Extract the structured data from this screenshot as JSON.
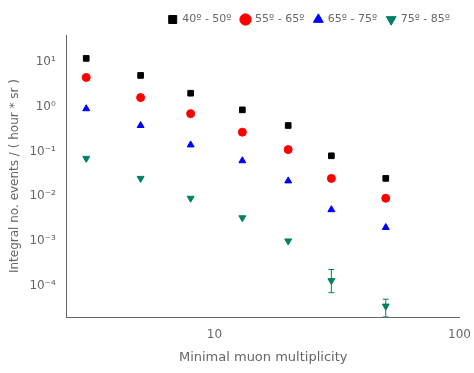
{
  "chart_data": {
    "type": "scatter",
    "x_label": "Minimal muon multiplicity",
    "y_label": "Integral no. events / ( hour * sr )",
    "log": true,
    "grid": false,
    "legend": "upper right",
    "xlim": [
      2.5,
      100
    ],
    "ylim": [
      2e-05,
      40
    ],
    "xticks": [
      10,
      100
    ],
    "yticks": [
      {
        "value": 0.0001,
        "label": "10⁻⁴"
      },
      {
        "value": 0.001,
        "label": "10⁻³"
      },
      {
        "value": 0.01,
        "label": "10⁻²"
      },
      {
        "value": 0.1,
        "label": "10⁻¹"
      },
      {
        "value": 1,
        "label": "10⁰"
      },
      {
        "value": 10,
        "label": "10¹"
      }
    ],
    "x": [
      3,
      5,
      8,
      13,
      20,
      30,
      50
    ],
    "series": [
      {
        "name": "40º - 50º",
        "color": "black",
        "marker": "square",
        "values": [
          12,
          5,
          2.0,
          0.85,
          0.38,
          0.08,
          0.025
        ]
      },
      {
        "name": "55º - 65º",
        "color": "red",
        "marker": "circle",
        "values": [
          4.5,
          1.6,
          0.7,
          0.27,
          0.11,
          0.025,
          0.009
        ]
      },
      {
        "name": "65º - 75º",
        "color": "blue",
        "marker": "triangle_up",
        "values": [
          0.9,
          0.38,
          0.14,
          0.062,
          0.022,
          0.005,
          0.002
        ]
      },
      {
        "name": "75º - 85º",
        "color": "#008060",
        "marker": "triangle_down",
        "values": [
          0.07,
          0.025,
          0.009,
          0.0033,
          0.001,
          0.00013,
          3.5e-05
        ],
        "yerr_lo": [
          null,
          null,
          null,
          null,
          null,
          6e-05,
          1.5e-05
        ],
        "yerr_hi": [
          null,
          null,
          null,
          null,
          null,
          0.0001,
          1.5e-05
        ]
      }
    ]
  }
}
